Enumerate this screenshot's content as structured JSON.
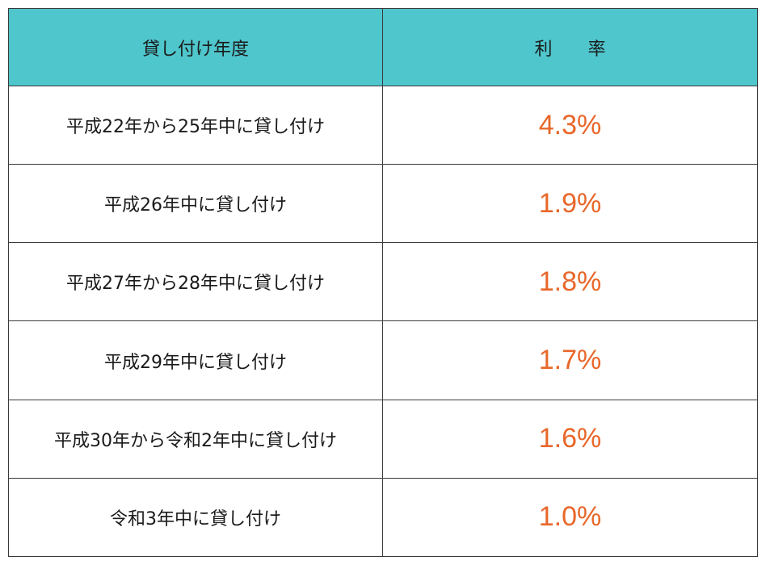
{
  "table": {
    "header": {
      "period": "貸し付け年度",
      "rate": "利　　率"
    },
    "rows": [
      {
        "period": "平成22年から25年中に貸し付け",
        "rate": "4.3%"
      },
      {
        "period": "平成26年中に貸し付け",
        "rate": "1.9%"
      },
      {
        "period": "平成27年から28年中に貸し付け",
        "rate": "1.8%"
      },
      {
        "period": "平成29年中に貸し付け",
        "rate": "1.7%"
      },
      {
        "period": "平成30年から令和2年中に貸し付け",
        "rate": "1.6%"
      },
      {
        "period": "令和3年中に貸し付け",
        "rate": "1.0%"
      }
    ]
  },
  "colors": {
    "header_bg": "#4ec6cc",
    "rate_text": "#e8672a",
    "border": "#3a3a3a"
  }
}
